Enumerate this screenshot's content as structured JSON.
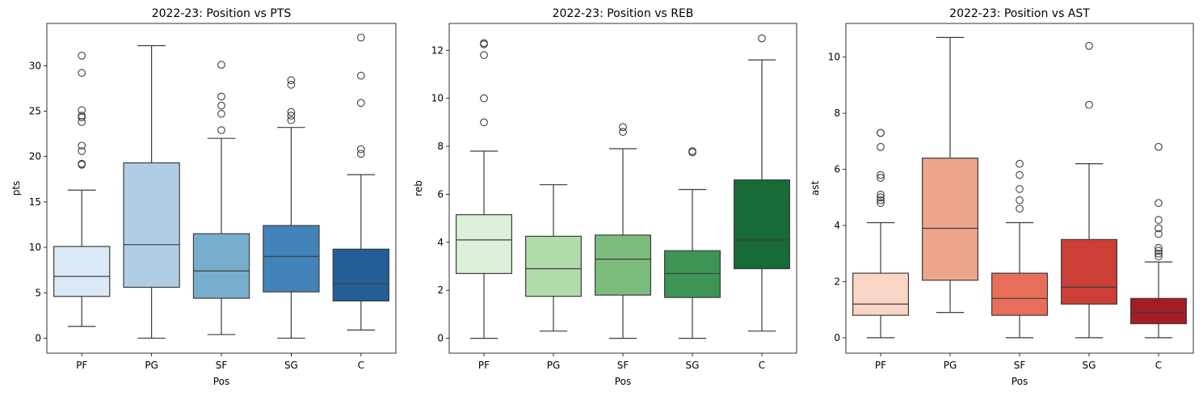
{
  "chart_data": [
    {
      "type": "box",
      "title": "2022-23: Position vs PTS",
      "xlabel": "Pos",
      "ylabel": "pts",
      "categories": [
        "PF",
        "PG",
        "SF",
        "SG",
        "C"
      ],
      "ylim": [
        -1.65,
        34.65
      ],
      "yticks": [
        0,
        5,
        10,
        15,
        20,
        25,
        30
      ],
      "palette": [
        "#dbe8f5",
        "#b0cde3",
        "#78aecd",
        "#4284b9",
        "#245e98"
      ],
      "grid": false,
      "boxes": [
        {
          "category": "PF",
          "whisker_low": 1.3,
          "q1": 4.6,
          "median": 6.8,
          "q3": 10.1,
          "whisker_high": 16.3,
          "outliers": [
            19.1,
            19.2,
            20.6,
            21.2,
            23.8,
            24.3,
            24.5,
            25.1,
            29.2,
            31.1
          ]
        },
        {
          "category": "PG",
          "whisker_low": 0.0,
          "q1": 5.6,
          "median": 10.3,
          "q3": 19.3,
          "whisker_high": 32.2,
          "outliers": []
        },
        {
          "category": "SF",
          "whisker_low": 0.4,
          "q1": 4.4,
          "median": 7.4,
          "q3": 11.5,
          "whisker_high": 22.0,
          "outliers": [
            22.9,
            24.7,
            25.6,
            26.6,
            30.1
          ]
        },
        {
          "category": "SG",
          "whisker_low": 0.0,
          "q1": 5.1,
          "median": 9.0,
          "q3": 12.4,
          "whisker_high": 23.2,
          "outliers": [
            24.0,
            24.5,
            24.9,
            27.9,
            28.4
          ]
        },
        {
          "category": "C",
          "whisker_low": 0.9,
          "q1": 4.1,
          "median": 6.0,
          "q3": 9.8,
          "whisker_high": 18.0,
          "outliers": [
            20.3,
            20.8,
            25.9,
            28.9,
            33.1
          ]
        }
      ]
    },
    {
      "type": "box",
      "title": "2022-23: Position vs REB",
      "xlabel": "Pos",
      "ylabel": "reb",
      "categories": [
        "PF",
        "PG",
        "SF",
        "SG",
        "C"
      ],
      "ylim": [
        -0.62,
        13.12
      ],
      "yticks": [
        0,
        2,
        4,
        6,
        8,
        10,
        12
      ],
      "palette": [
        "#ddf0d9",
        "#b2dbac",
        "#7cbd7d",
        "#3d9455",
        "#166b36"
      ],
      "grid": false,
      "boxes": [
        {
          "category": "PF",
          "whisker_low": 0.0,
          "q1": 2.7,
          "median": 4.1,
          "q3": 5.15,
          "whisker_high": 7.8,
          "outliers": [
            9.0,
            10.0,
            11.8,
            12.25,
            12.3
          ]
        },
        {
          "category": "PG",
          "whisker_low": 0.3,
          "q1": 1.75,
          "median": 2.9,
          "q3": 4.25,
          "whisker_high": 6.4,
          "outliers": []
        },
        {
          "category": "SF",
          "whisker_low": 0.0,
          "q1": 1.8,
          "median": 3.3,
          "q3": 4.3,
          "whisker_high": 7.9,
          "outliers": [
            8.6,
            8.8
          ]
        },
        {
          "category": "SG",
          "whisker_low": 0.0,
          "q1": 1.7,
          "median": 2.7,
          "q3": 3.65,
          "whisker_high": 6.2,
          "outliers": [
            7.75,
            7.8
          ]
        },
        {
          "category": "C",
          "whisker_low": 0.3,
          "q1": 2.9,
          "median": 4.1,
          "q3": 6.6,
          "whisker_high": 11.6,
          "outliers": [
            12.5
          ]
        }
      ]
    },
    {
      "type": "box",
      "title": "2022-23: Position vs AST",
      "xlabel": "Pos",
      "ylabel": "ast",
      "categories": [
        "PF",
        "PG",
        "SF",
        "SG",
        "C"
      ],
      "ylim": [
        -0.55,
        11.2
      ],
      "yticks": [
        0,
        2,
        4,
        6,
        8,
        10
      ],
      "palette": [
        "#fad6c6",
        "#eea58b",
        "#e76f59",
        "#cb3f37",
        "#a51c22"
      ],
      "grid": false,
      "boxes": [
        {
          "category": "PF",
          "whisker_low": 0.0,
          "q1": 0.8,
          "median": 1.2,
          "q3": 2.3,
          "whisker_high": 4.1,
          "outliers": [
            4.8,
            4.9,
            5.0,
            5.1,
            5.7,
            5.8,
            6.8,
            7.3,
            7.3
          ]
        },
        {
          "category": "PG",
          "whisker_low": 0.9,
          "q1": 2.05,
          "median": 3.9,
          "q3": 6.4,
          "whisker_high": 10.7,
          "outliers": []
        },
        {
          "category": "SF",
          "whisker_low": 0.0,
          "q1": 0.8,
          "median": 1.4,
          "q3": 2.3,
          "whisker_high": 4.1,
          "outliers": [
            4.6,
            4.9,
            5.3,
            5.8,
            6.2
          ]
        },
        {
          "category": "SG",
          "whisker_low": 0.0,
          "q1": 1.2,
          "median": 1.8,
          "q3": 3.5,
          "whisker_high": 6.2,
          "outliers": [
            8.3,
            10.4
          ]
        },
        {
          "category": "C",
          "whisker_low": 0.0,
          "q1": 0.5,
          "median": 0.9,
          "q3": 1.4,
          "whisker_high": 2.7,
          "outliers": [
            2.9,
            3.0,
            3.1,
            3.2,
            3.7,
            3.9,
            4.2,
            4.8,
            6.8
          ]
        }
      ]
    }
  ]
}
